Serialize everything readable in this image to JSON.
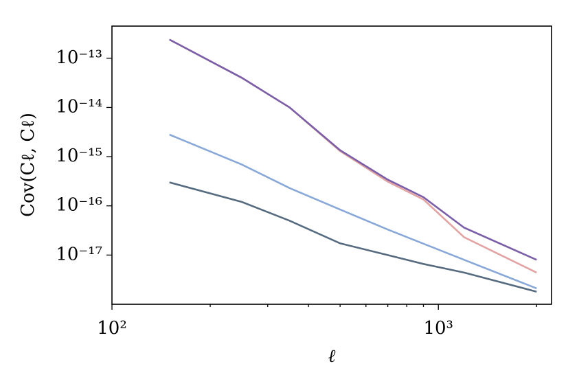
{
  "chart_data": {
    "type": "line",
    "x_label": "ℓ",
    "y_label": "Cov(Cℓ, Cℓ)",
    "log_x": true,
    "log_y": true,
    "x": [
      150,
      250,
      350,
      500,
      700,
      900,
      1200,
      2000
    ],
    "series": [
      {
        "color": "#e3a3a3",
        "values": [
          2.4e-13,
          4e-14,
          1e-14,
          1.3e-15,
          3.1e-16,
          1.35e-16,
          2.3e-17,
          4.4e-18
        ]
      },
      {
        "color": "#7a5ea8",
        "values": [
          2.4e-13,
          4e-14,
          1e-14,
          1.35e-15,
          3.4e-16,
          1.5e-16,
          3.6e-17,
          8e-18
        ]
      },
      {
        "color": "#88a8d8",
        "values": [
          2.8e-15,
          6.9e-16,
          2.3e-16,
          8.4e-17,
          3.3e-17,
          1.7e-17,
          8e-18,
          2.1e-18
        ]
      },
      {
        "color": "#566b80",
        "values": [
          3e-16,
          1.2e-16,
          5e-17,
          1.73e-17,
          1e-17,
          6.6e-18,
          4.4e-18,
          1.8e-18
        ]
      }
    ],
    "xlim": [
      100,
      2222
    ],
    "ylim": [
      1e-18,
      4.5e-13
    ],
    "xticks": [
      {
        "value": 100,
        "label": "10²"
      },
      {
        "value": 1000,
        "label": "10³"
      }
    ],
    "x_minor_ticks": [
      200,
      300,
      400,
      500,
      600,
      700,
      800,
      900,
      2000
    ],
    "yticks": [
      {
        "value": 1e-13,
        "label": "10⁻¹³"
      },
      {
        "value": 1e-14,
        "label": "10⁻¹⁴"
      },
      {
        "value": 1e-15,
        "label": "10⁻¹⁵"
      },
      {
        "value": 1e-16,
        "label": "10⁻¹⁶"
      },
      {
        "value": 1e-17,
        "label": "10⁻¹⁷"
      }
    ]
  }
}
